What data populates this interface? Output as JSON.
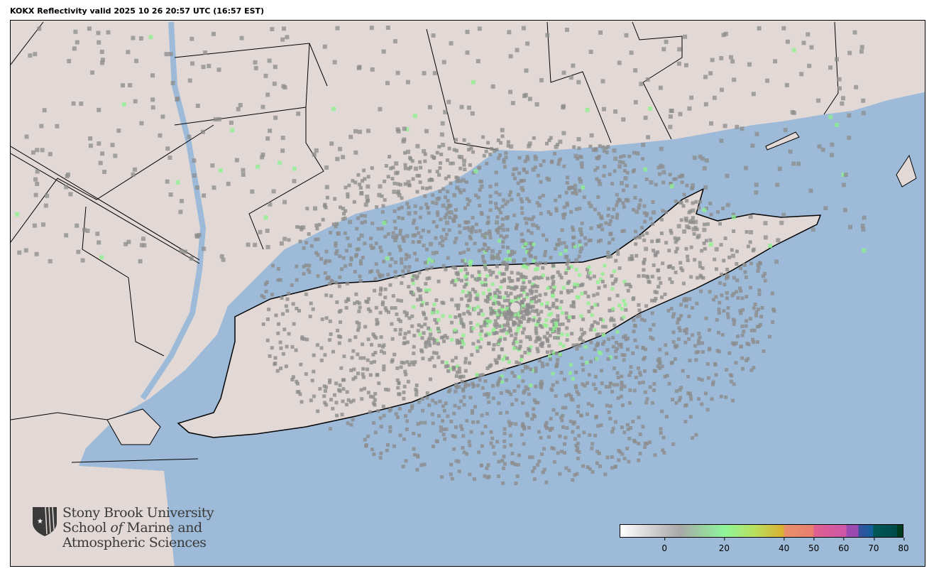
{
  "title": "KOKX Reflectivity valid 2025 10 26 20:57 UTC (16:57 EST)",
  "colors": {
    "ocean": "#9dbbd8",
    "land": "#e2d9d7",
    "border": "#000000",
    "radar_low": "#8c8c8c",
    "radar_green": "#8ef08e"
  },
  "logo": {
    "line1": "Stony Brook University",
    "line2_a": "School ",
    "line2_b": "of",
    "line2_c": " Marine and",
    "line3": "Atmospheric Sciences",
    "icon": "shield-star-icon"
  },
  "colorbar": {
    "min": -15,
    "max": 80,
    "ticks": [
      {
        "value": 0,
        "label": "0"
      },
      {
        "value": 20,
        "label": "20"
      },
      {
        "value": 40,
        "label": "40"
      },
      {
        "value": 50,
        "label": "50"
      },
      {
        "value": 60,
        "label": "60"
      },
      {
        "value": 70,
        "label": "70"
      },
      {
        "value": 80,
        "label": "80"
      }
    ],
    "stops": [
      {
        "value": -15,
        "color": "#ffffff"
      },
      {
        "value": 5,
        "color": "#a8a8a8"
      },
      {
        "value": 20,
        "color": "#8ef59a"
      },
      {
        "value": 30,
        "color": "#b8e060"
      },
      {
        "value": 40,
        "color": "#dcae30"
      },
      {
        "value": 40.1,
        "color": "#e8906a"
      },
      {
        "value": 50,
        "color": "#e87e70"
      },
      {
        "value": 50.1,
        "color": "#e06090"
      },
      {
        "value": 61,
        "color": "#cc55a8"
      },
      {
        "value": 61.1,
        "color": "#9a4ab0"
      },
      {
        "value": 65,
        "color": "#9a4ab0"
      },
      {
        "value": 65.1,
        "color": "#3a4fa0"
      },
      {
        "value": 70,
        "color": "#10609a"
      },
      {
        "value": 70.1,
        "color": "#005858"
      },
      {
        "value": 78,
        "color": "#004a4a"
      },
      {
        "value": 78.1,
        "color": "#003a20"
      },
      {
        "value": 80,
        "color": "#003a20"
      }
    ]
  }
}
